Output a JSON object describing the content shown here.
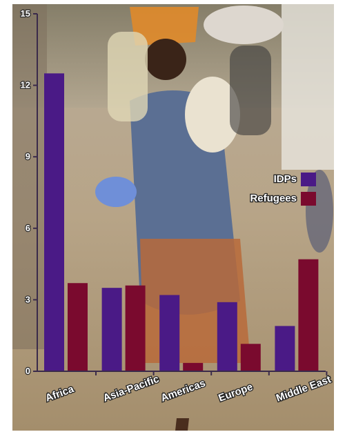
{
  "chart_data": {
    "type": "bar",
    "categories": [
      "Africa",
      "Asia-Pacific",
      "Americas",
      "Europe",
      "Middle East"
    ],
    "series": [
      {
        "name": "IDPs",
        "values": [
          12.5,
          3.5,
          3.2,
          2.9,
          1.9
        ]
      },
      {
        "name": "Refugees",
        "values": [
          3.7,
          3.6,
          0.35,
          1.15,
          4.7
        ]
      }
    ],
    "ylim": [
      0,
      15
    ],
    "yticks": [
      "0",
      "3",
      "6",
      "9",
      "12",
      "15"
    ],
    "legend_position": "right",
    "colors": {
      "IDPs": "#4a1a86",
      "Refugees": "#7a0a2e"
    }
  }
}
